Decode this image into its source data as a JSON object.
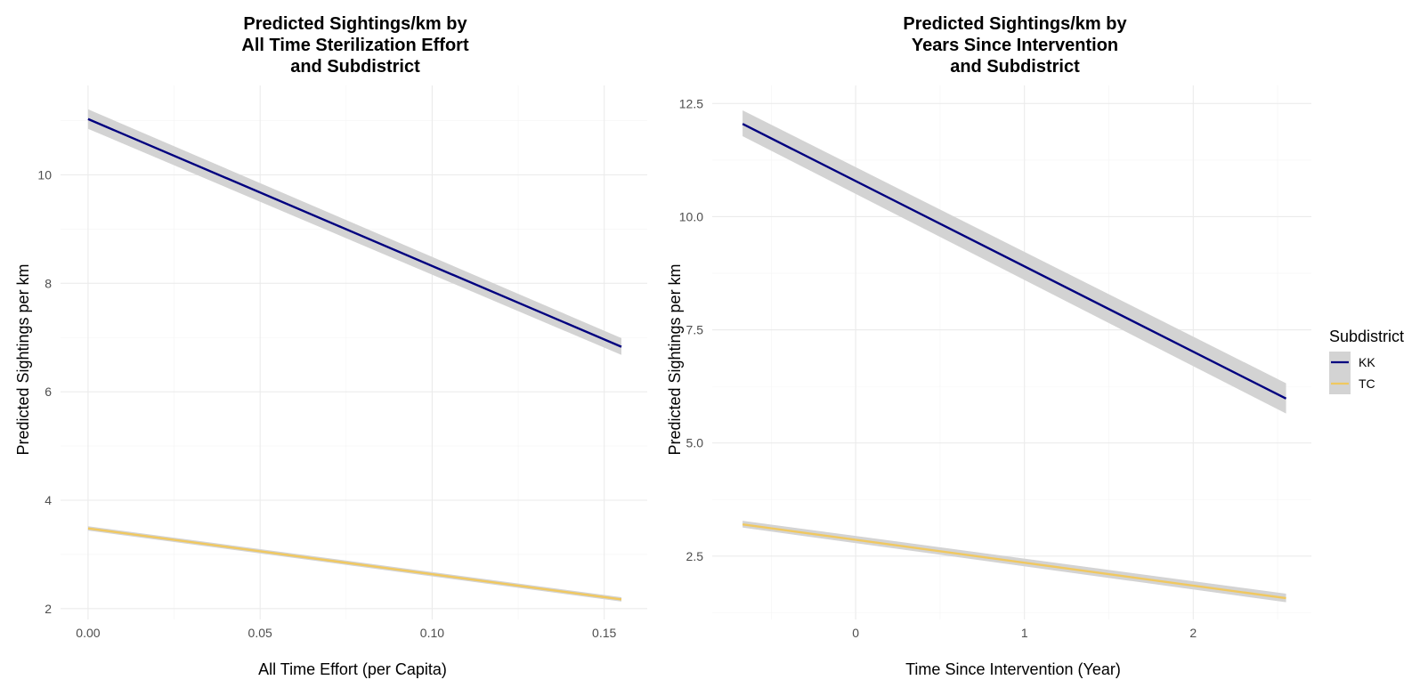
{
  "chart_data": [
    {
      "type": "line",
      "title": [
        "Predicted Sightings/km by",
        "All Time Sterilization Effort",
        "and Subdistrict"
      ],
      "xlabel": "All Time Effort (per Capita)",
      "ylabel": "Predicted Sightings per km",
      "xlim": [
        -0.008,
        0.1625
      ],
      "ylim": [
        1.8,
        11.65
      ],
      "xticks": [
        0.0,
        0.05,
        0.1,
        0.15
      ],
      "xtick_labels": [
        "0.00",
        "0.05",
        "0.10",
        "0.15"
      ],
      "yticks": [
        2,
        4,
        6,
        8,
        10
      ],
      "ytick_labels": [
        "2",
        "4",
        "6",
        "8",
        "10"
      ],
      "grid": true,
      "series": [
        {
          "name": "KK",
          "color": "#00007f",
          "x": [
            0.0,
            0.155
          ],
          "y": [
            11.03,
            6.83
          ],
          "ci_lower": [
            10.85,
            6.68
          ],
          "ci_upper": [
            11.21,
            6.99
          ]
        },
        {
          "name": "TC",
          "color": "#f0c860",
          "x": [
            0.0,
            0.155
          ],
          "y": [
            3.48,
            2.17
          ],
          "ci_lower": [
            3.44,
            2.13
          ],
          "ci_upper": [
            3.52,
            2.21
          ]
        }
      ]
    },
    {
      "type": "line",
      "title": [
        "Predicted Sightings/km by",
        "Years Since Intervention",
        "and Subdistrict"
      ],
      "xlabel": "Time Since Intervention (Year)",
      "ylabel": "Predicted Sightings per km",
      "xlim": [
        -0.85,
        2.7
      ],
      "ylim": [
        1.1,
        12.9
      ],
      "xticks": [
        0,
        1,
        2
      ],
      "xtick_labels": [
        "0",
        "1",
        "2"
      ],
      "yticks": [
        2.5,
        5.0,
        7.5,
        10.0,
        12.5
      ],
      "ytick_labels": [
        "2.5",
        "5.0",
        "7.5",
        "10.0",
        "12.5"
      ],
      "grid": true,
      "series": [
        {
          "name": "KK",
          "color": "#00007f",
          "x": [
            -0.67,
            2.55
          ],
          "y": [
            12.05,
            5.98
          ],
          "ci_lower": [
            11.78,
            5.65
          ],
          "ci_upper": [
            12.35,
            6.32
          ]
        },
        {
          "name": "TC",
          "color": "#f0c860",
          "x": [
            -0.67,
            2.55
          ],
          "y": [
            3.2,
            1.57
          ],
          "ci_lower": [
            3.13,
            1.48
          ],
          "ci_upper": [
            3.28,
            1.67
          ]
        }
      ]
    }
  ],
  "legend": {
    "title": "Subdistrict",
    "placement": "right",
    "items": [
      {
        "label": "KK",
        "color": "#00007f"
      },
      {
        "label": "TC",
        "color": "#f0c860"
      }
    ]
  },
  "ribbon_color": "#d3d3d3"
}
